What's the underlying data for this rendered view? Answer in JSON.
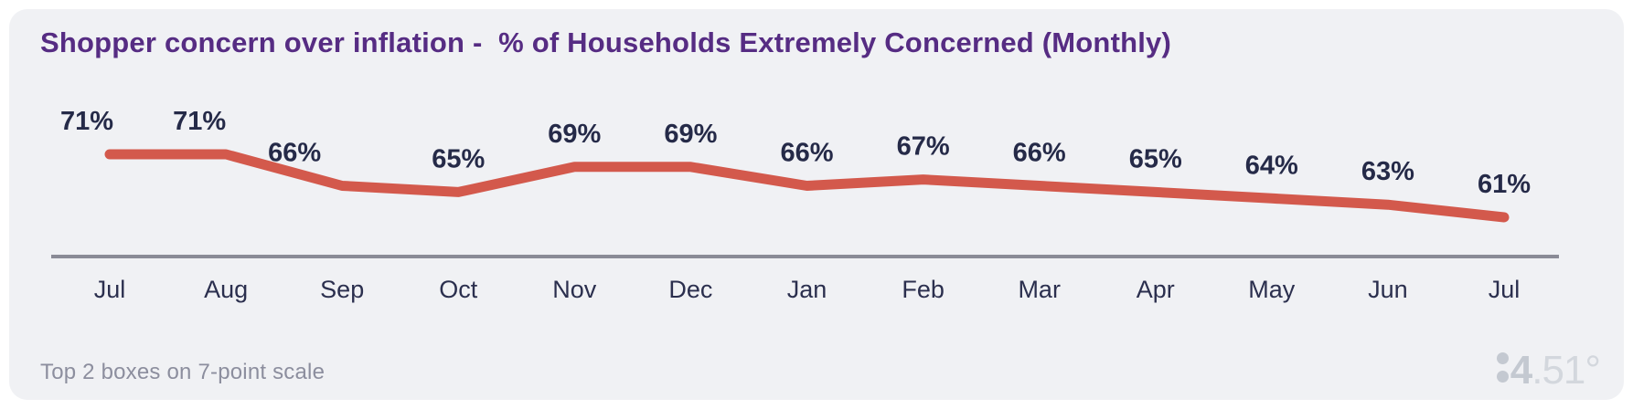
{
  "colors": {
    "page_bg": "#ffffff",
    "card_bg": "#f0f1f4",
    "title": "#562c83",
    "line": "#d3594c",
    "value_label": "#252a48",
    "month_label": "#2b2f4e",
    "axis": "#8a8b96",
    "footnote": "#8c8e9e",
    "logo_gray": "#c4c9d1",
    "logo_light": "#d3d7dd"
  },
  "card": {
    "footnote": "Top 2 boxes on 7-point scale",
    "logo_text": "84.51°",
    "logo_four": "4",
    "logo_rest": ".51°"
  },
  "chart_data": {
    "type": "line",
    "title": "Shopper concern over inflation -  % of Households Extremely Concerned (Monthly)",
    "categories": [
      "Jul",
      "Aug",
      "Sep",
      "Oct",
      "Nov",
      "Dec",
      "Jan",
      "Feb",
      "Mar",
      "Apr",
      "May",
      "Jun",
      "Jul"
    ],
    "values": [
      71,
      71,
      66,
      65,
      69,
      69,
      66,
      67,
      66,
      65,
      64,
      63,
      61
    ],
    "unit": "%",
    "series_name": "% of Households Extremely Concerned",
    "ylim": [
      55,
      75
    ],
    "data_labels": true,
    "grid": false,
    "legend": "none",
    "line_color": "#d3594c"
  }
}
